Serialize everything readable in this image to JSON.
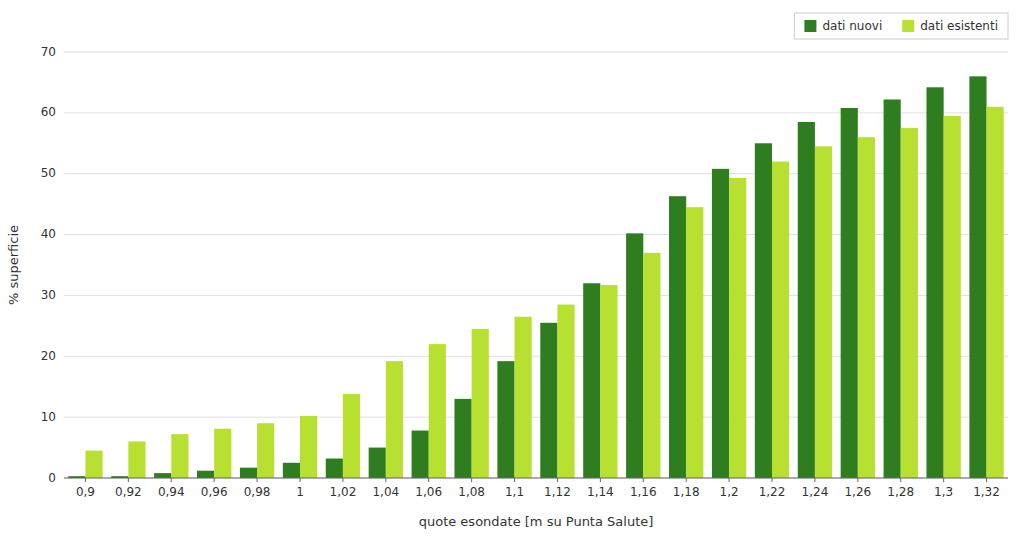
{
  "chart_data": {
    "type": "bar",
    "xlabel": "quote esondate [m su Punta Salute]",
    "ylabel": "% superficie",
    "categories": [
      "0,9",
      "0,92",
      "0,94",
      "0,96",
      "0,98",
      "1",
      "1,02",
      "1,04",
      "1,06",
      "1,08",
      "1,1",
      "1,12",
      "1,14",
      "1,16",
      "1,18",
      "1,2",
      "1,22",
      "1,24",
      "1,26",
      "1,28",
      "1,3",
      "1,32"
    ],
    "series": [
      {
        "name": "dati nuovi",
        "color": "#2e7d1e",
        "values": [
          0.3,
          0.3,
          0.8,
          1.2,
          1.7,
          2.5,
          3.2,
          5.0,
          7.8,
          13.0,
          19.2,
          25.5,
          32.0,
          40.2,
          46.3,
          50.8,
          55.0,
          58.5,
          60.8,
          62.2,
          64.2,
          66.0
        ]
      },
      {
        "name": "dati esistenti",
        "color": "#b8e030",
        "values": [
          4.5,
          6.0,
          7.2,
          8.1,
          9.0,
          10.2,
          13.8,
          19.2,
          22.0,
          24.5,
          26.5,
          28.5,
          31.7,
          37.0,
          44.5,
          49.3,
          52.0,
          54.5,
          56.0,
          57.5,
          59.5,
          61.0
        ]
      }
    ],
    "ylim": [
      0,
      70
    ],
    "yticks": [
      0,
      10,
      20,
      30,
      40,
      50,
      60,
      70
    ],
    "grid": true,
    "legend": "upper right"
  }
}
